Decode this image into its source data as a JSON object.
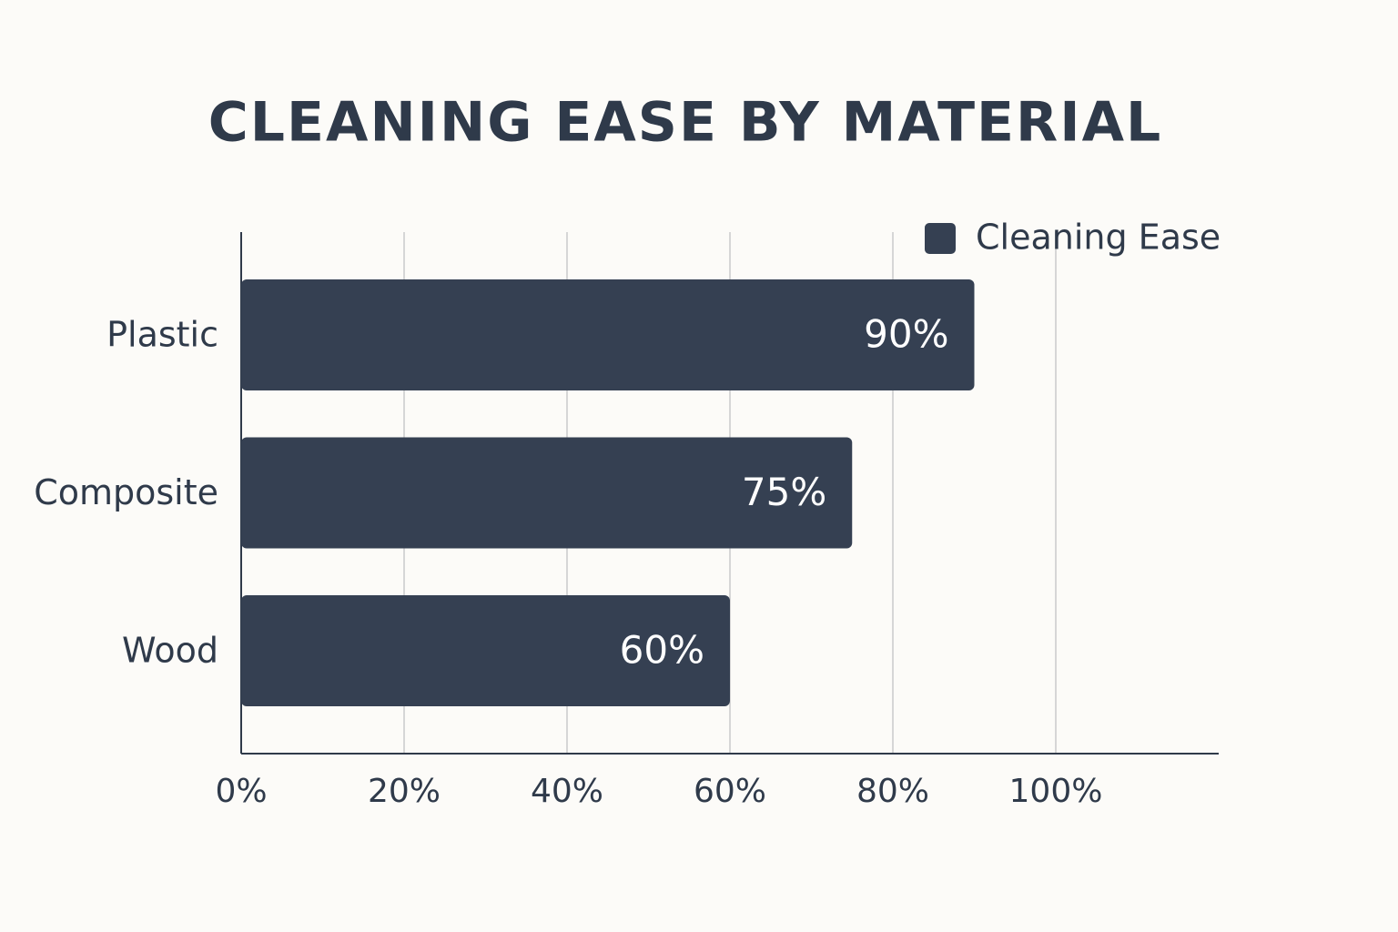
{
  "chart_data": {
    "type": "hbar",
    "title": "CLEANING EASE BY MATERIAL",
    "categories": [
      "Plastic",
      "Composite",
      "Wood"
    ],
    "series": [
      {
        "name": "Cleaning Ease",
        "color": "#354052",
        "values": [
          90,
          75,
          60
        ],
        "value_labels": [
          "90%",
          "75%",
          "60%"
        ]
      }
    ],
    "xlim": [
      0,
      120
    ],
    "xticks": [
      {
        "value": 0,
        "label": "0%"
      },
      {
        "value": 20,
        "label": "20%"
      },
      {
        "value": 40,
        "label": "40%"
      },
      {
        "value": 60,
        "label": "60%"
      },
      {
        "value": 80,
        "label": "80%"
      },
      {
        "value": 100,
        "label": "100%"
      }
    ],
    "grid": true,
    "legend": "top-right"
  }
}
